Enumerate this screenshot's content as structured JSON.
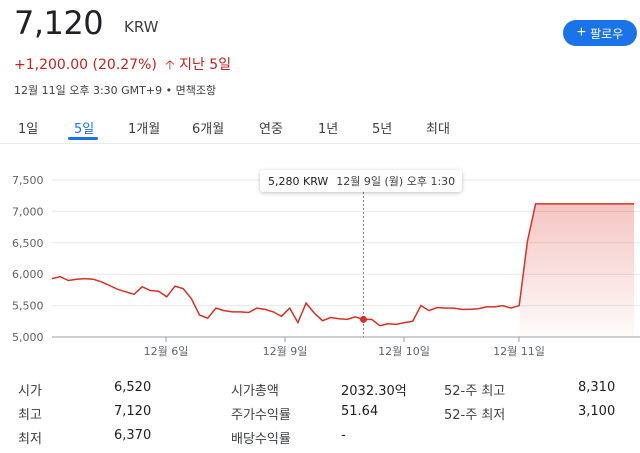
{
  "header": {
    "price": "7,120",
    "currency": "KRW",
    "follow_label": "팔로우",
    "change": "+1,200.00 (20.27%)",
    "change_period": "지난 5일",
    "meta": "12월 11일 오후 3:30 GMT+9 • 면책조항"
  },
  "tabs": [
    {
      "label": "1일",
      "active": false
    },
    {
      "label": "5일",
      "active": true
    },
    {
      "label": "1개월",
      "active": false
    },
    {
      "label": "6개월",
      "active": false
    },
    {
      "label": "연중",
      "active": false
    },
    {
      "label": "1년",
      "active": false
    },
    {
      "label": "5년",
      "active": false
    },
    {
      "label": "최대",
      "active": false
    }
  ],
  "tooltip": {
    "price": "5,280 KRW",
    "date": "12월 9일 (월) 오후 1:30"
  },
  "colors": {
    "line": "#d93025",
    "accent": "#1a73e8",
    "negative": "#c5221f"
  },
  "chart_data": {
    "type": "area",
    "y_ticks": [
      "7,500",
      "7,000",
      "6,500",
      "6,000",
      "5,500",
      "5,000"
    ],
    "ylim": [
      5000,
      7500
    ],
    "x_tick_labels": [
      "12월 6일",
      "12월 9일",
      "12월 10일",
      "12월 11일"
    ],
    "values": [
      5930,
      5960,
      5900,
      5920,
      5930,
      5920,
      5880,
      5820,
      5760,
      5720,
      5680,
      5800,
      5740,
      5730,
      5640,
      5810,
      5770,
      5610,
      5350,
      5300,
      5460,
      5420,
      5400,
      5400,
      5390,
      5460,
      5440,
      5400,
      5330,
      5460,
      5230,
      5540,
      5380,
      5260,
      5310,
      5290,
      5280,
      5320,
      5280,
      5280,
      5180,
      5210,
      5200,
      5230,
      5250,
      5500,
      5420,
      5470,
      5460,
      5460,
      5440,
      5440,
      5450,
      5480,
      5480,
      5500,
      5460,
      5500,
      6520,
      7120,
      7120,
      7120,
      7120,
      7120,
      7120,
      7120,
      7120,
      7120,
      7120,
      7120,
      7120,
      7120
    ],
    "highlight_index": 38
  },
  "stats": {
    "col1": [
      {
        "label": "시가",
        "value": "6,520"
      },
      {
        "label": "최고",
        "value": "7,120"
      },
      {
        "label": "최저",
        "value": "6,370"
      }
    ],
    "col2": [
      {
        "label": "시가총액",
        "value": "2032.30억"
      },
      {
        "label": "주가수익률",
        "value": "51.64"
      },
      {
        "label": "배당수익률",
        "value": "-"
      }
    ],
    "col3": [
      {
        "label": "52-주 최고",
        "value": "8,310"
      },
      {
        "label": "52-주 최저",
        "value": "3,100"
      }
    ]
  }
}
